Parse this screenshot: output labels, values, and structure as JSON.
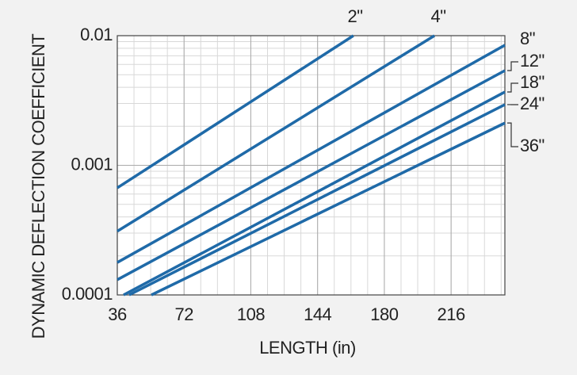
{
  "chart_data": {
    "type": "line",
    "x_label": "LENGTH (in)",
    "y_label": "DYNAMIC DEFLECTION COEFFICIENT",
    "xlim": [
      36,
      245
    ],
    "xticks": [
      36,
      72,
      108,
      144,
      180,
      216
    ],
    "ylim": [
      0.0001,
      0.01
    ],
    "yticks": [
      0.0001,
      0.001,
      0.01
    ],
    "y_scale": "log",
    "grid": true,
    "series": [
      {
        "name": "2\"",
        "color": "#1f6aa8",
        "x": [
          36,
          163.3
        ],
        "values": [
          0.00067,
          0.01
        ]
      },
      {
        "name": "4\"",
        "color": "#1f6aa8",
        "x": [
          36,
          207
        ],
        "values": [
          0.00031,
          0.01
        ]
      },
      {
        "name": "8\"",
        "color": "#1f6aa8",
        "x": [
          36,
          245
        ],
        "values": [
          0.000178,
          0.00845
        ]
      },
      {
        "name": "12\"",
        "color": "#1f6aa8",
        "x": [
          36,
          245
        ],
        "values": [
          0.000131,
          0.00538
        ]
      },
      {
        "name": "18\"",
        "color": "#1f6aa8",
        "x": [
          39.4,
          245
        ],
        "values": [
          0.0001,
          0.00368
        ]
      },
      {
        "name": "24\"",
        "color": "#1f6aa8",
        "x": [
          42.4,
          245
        ],
        "values": [
          0.0001,
          0.00294
        ]
      },
      {
        "name": "36\"",
        "color": "#1f6aa8",
        "x": [
          54.4,
          245
        ],
        "values": [
          0.0001,
          0.00212
        ]
      }
    ]
  }
}
